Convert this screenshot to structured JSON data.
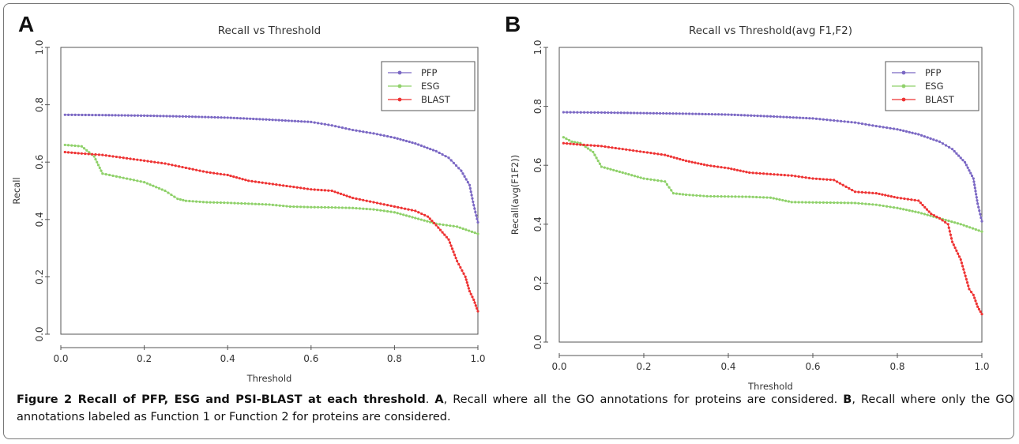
{
  "figure": {
    "caption_label": "Figure 2",
    "caption_title": "Recall of PFP, ESG and PSI-BLAST at each threshold",
    "caption_a_label": "A",
    "caption_a_text": ", Recall where all the GO annotations for proteins are considered. ",
    "caption_b_label": "B",
    "caption_b_text": ", Recall where only the GO annotations labeled as Function 1 or Function 2 for proteins are considered."
  },
  "colors": {
    "PFP": "#7b68c4",
    "ESG": "#8fd16a",
    "BLAST": "#ee3333"
  },
  "chart_data": [
    {
      "type": "line",
      "panel": "A",
      "title": "Recall vs Threshold",
      "xlabel": "Threshold",
      "ylabel": "Recall",
      "xlim": [
        0,
        1
      ],
      "ylim": [
        0,
        1
      ],
      "xticks": [
        "0.0",
        "0.2",
        "0.4",
        "0.6",
        "0.8",
        "1.0"
      ],
      "yticks": [
        "0.0",
        "0.2",
        "0.4",
        "0.6",
        "0.8",
        "1.0"
      ],
      "legend": "top-right",
      "grid": false,
      "series": [
        {
          "name": "PFP",
          "x": [
            0.01,
            0.1,
            0.2,
            0.3,
            0.4,
            0.5,
            0.6,
            0.65,
            0.7,
            0.75,
            0.8,
            0.85,
            0.9,
            0.93,
            0.96,
            0.98,
            0.99,
            1.0
          ],
          "y": [
            0.765,
            0.764,
            0.762,
            0.759,
            0.755,
            0.748,
            0.74,
            0.728,
            0.712,
            0.7,
            0.685,
            0.665,
            0.638,
            0.615,
            0.57,
            0.52,
            0.45,
            0.39
          ]
        },
        {
          "name": "ESG",
          "x": [
            0.01,
            0.05,
            0.08,
            0.1,
            0.15,
            0.2,
            0.25,
            0.28,
            0.3,
            0.35,
            0.4,
            0.45,
            0.5,
            0.55,
            0.6,
            0.65,
            0.7,
            0.75,
            0.8,
            0.85,
            0.9,
            0.95,
            1.0
          ],
          "y": [
            0.66,
            0.655,
            0.62,
            0.56,
            0.545,
            0.53,
            0.5,
            0.472,
            0.465,
            0.46,
            0.458,
            0.455,
            0.452,
            0.445,
            0.443,
            0.442,
            0.44,
            0.435,
            0.425,
            0.405,
            0.385,
            0.375,
            0.35
          ]
        },
        {
          "name": "BLAST",
          "x": [
            0.01,
            0.05,
            0.1,
            0.15,
            0.2,
            0.25,
            0.3,
            0.35,
            0.4,
            0.45,
            0.5,
            0.55,
            0.6,
            0.65,
            0.7,
            0.75,
            0.8,
            0.85,
            0.88,
            0.9,
            0.93,
            0.95,
            0.97,
            0.98,
            0.99,
            1.0
          ],
          "y": [
            0.635,
            0.63,
            0.625,
            0.615,
            0.605,
            0.595,
            0.58,
            0.565,
            0.555,
            0.535,
            0.525,
            0.515,
            0.505,
            0.5,
            0.475,
            0.46,
            0.445,
            0.43,
            0.41,
            0.38,
            0.33,
            0.255,
            0.2,
            0.15,
            0.12,
            0.08
          ]
        }
      ]
    },
    {
      "type": "line",
      "panel": "B",
      "title": "Recall vs Threshold(avg F1,F2)",
      "xlabel": "Threshold",
      "ylabel": "Recall(avg(F1F2))",
      "xlim": [
        0,
        1
      ],
      "ylim": [
        0,
        1
      ],
      "xticks": [
        "0.0",
        "0.2",
        "0.4",
        "0.6",
        "0.8",
        "1.0"
      ],
      "yticks": [
        "0.0",
        "0.2",
        "0.4",
        "0.6",
        "0.8",
        "1.0"
      ],
      "legend": "top-right",
      "grid": false,
      "series": [
        {
          "name": "PFP",
          "x": [
            0.01,
            0.1,
            0.2,
            0.3,
            0.4,
            0.5,
            0.6,
            0.65,
            0.7,
            0.75,
            0.8,
            0.85,
            0.9,
            0.93,
            0.96,
            0.98,
            0.99,
            1.0
          ],
          "y": [
            0.78,
            0.779,
            0.777,
            0.775,
            0.772,
            0.766,
            0.759,
            0.752,
            0.745,
            0.733,
            0.722,
            0.705,
            0.68,
            0.655,
            0.61,
            0.555,
            0.47,
            0.41
          ]
        },
        {
          "name": "ESG",
          "x": [
            0.01,
            0.03,
            0.05,
            0.08,
            0.1,
            0.15,
            0.2,
            0.25,
            0.27,
            0.3,
            0.35,
            0.4,
            0.45,
            0.5,
            0.55,
            0.6,
            0.65,
            0.7,
            0.75,
            0.8,
            0.85,
            0.9,
            0.95,
            1.0
          ],
          "y": [
            0.695,
            0.68,
            0.675,
            0.645,
            0.595,
            0.575,
            0.555,
            0.545,
            0.505,
            0.5,
            0.495,
            0.494,
            0.493,
            0.49,
            0.475,
            0.474,
            0.473,
            0.472,
            0.466,
            0.455,
            0.44,
            0.42,
            0.4,
            0.375
          ]
        },
        {
          "name": "BLAST",
          "x": [
            0.01,
            0.05,
            0.1,
            0.15,
            0.2,
            0.25,
            0.3,
            0.35,
            0.4,
            0.45,
            0.5,
            0.55,
            0.6,
            0.65,
            0.7,
            0.75,
            0.8,
            0.85,
            0.88,
            0.9,
            0.92,
            0.93,
            0.95,
            0.97,
            0.98,
            0.99,
            1.0
          ],
          "y": [
            0.675,
            0.67,
            0.665,
            0.655,
            0.645,
            0.635,
            0.615,
            0.6,
            0.59,
            0.575,
            0.57,
            0.565,
            0.555,
            0.55,
            0.51,
            0.505,
            0.49,
            0.48,
            0.435,
            0.42,
            0.4,
            0.34,
            0.28,
            0.18,
            0.16,
            0.12,
            0.095
          ]
        }
      ]
    }
  ]
}
